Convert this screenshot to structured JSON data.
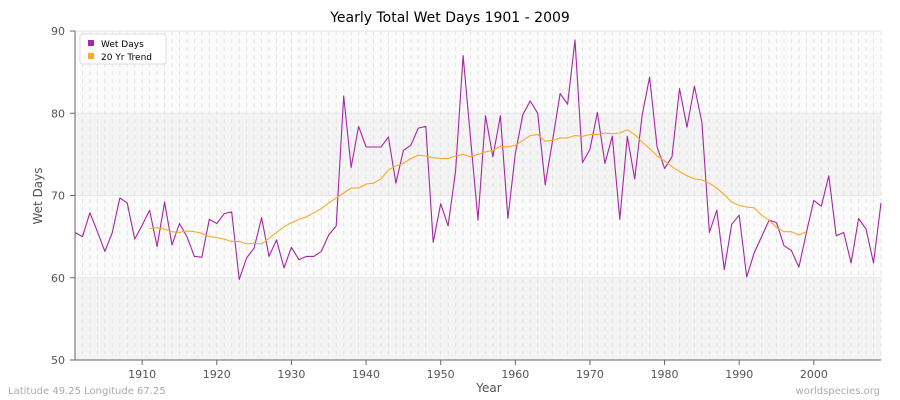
{
  "chart_data": {
    "type": "line",
    "title": "Yearly Total Wet Days 1901 - 2009",
    "xlabel": "Year",
    "ylabel": "Wet Days",
    "xlim": [
      1901,
      2009
    ],
    "ylim": [
      50,
      90
    ],
    "x_ticks": [
      1910,
      1920,
      1930,
      1940,
      1950,
      1960,
      1970,
      1980,
      1990,
      2000
    ],
    "y_ticks": [
      50,
      60,
      70,
      80,
      90
    ],
    "grid": true,
    "legend_position": "top-left",
    "series": [
      {
        "name": "Wet Days",
        "color": "#a626a4",
        "x_start": 1901,
        "values": [
          65.5,
          65.0,
          67.9,
          65.6,
          63.2,
          65.5,
          69.7,
          69.1,
          64.7,
          66.4,
          68.2,
          63.8,
          69.2,
          64.0,
          66.6,
          65.0,
          62.6,
          62.5,
          67.1,
          66.6,
          67.8,
          68.0,
          59.8,
          62.4,
          63.6,
          67.3,
          62.6,
          64.6,
          61.2,
          63.7,
          62.2,
          62.6,
          62.6,
          63.2,
          65.2,
          66.3,
          82.1,
          73.4,
          78.4,
          75.9,
          75.9,
          75.9,
          77.1,
          71.5,
          75.5,
          76.1,
          78.2,
          78.4,
          64.3,
          69.0,
          66.3,
          73.0,
          87.0,
          77.0,
          67.0,
          79.7,
          74.7,
          79.7,
          67.2,
          75.1,
          79.8,
          81.5,
          80.0,
          71.3,
          76.7,
          82.4,
          81.1,
          88.9,
          74.0,
          75.6,
          80.1,
          73.9,
          77.2,
          67.1,
          77.2,
          72.0,
          79.8,
          84.4,
          75.9,
          73.3,
          74.7,
          83.0,
          78.3,
          83.3,
          78.9,
          65.5,
          68.2,
          61.0,
          66.5,
          67.6,
          60.1,
          63.0,
          65.0,
          67.0,
          66.7,
          63.9,
          63.3,
          61.3,
          65.5,
          69.4,
          68.7,
          72.4,
          65.1,
          65.5,
          61.8,
          67.2,
          65.9,
          61.8,
          69.1
        ]
      },
      {
        "name": "20 Yr Trend",
        "color": "#ffa726",
        "x_start": 1911,
        "values": [
          66.0,
          66.1,
          65.9,
          65.6,
          65.5,
          65.7,
          65.6,
          65.4,
          65.0,
          64.9,
          64.7,
          64.4,
          64.4,
          64.1,
          64.2,
          64.1,
          64.8,
          65.5,
          66.2,
          66.7,
          67.1,
          67.4,
          67.9,
          68.4,
          69.1,
          69.7,
          70.3,
          70.9,
          70.9,
          71.4,
          71.5,
          72.0,
          73.1,
          73.6,
          73.9,
          74.5,
          74.9,
          74.8,
          74.6,
          74.5,
          74.5,
          74.8,
          75.0,
          74.7,
          75.0,
          75.3,
          75.5,
          76.0,
          75.9,
          76.1,
          76.7,
          77.3,
          77.4,
          76.6,
          76.7,
          77.0,
          77.0,
          77.3,
          77.2,
          77.4,
          77.4,
          77.6,
          77.5,
          77.6,
          78.0,
          77.4,
          76.5,
          75.7,
          74.8,
          74.2,
          73.5,
          72.9,
          72.4,
          72.0,
          71.9,
          71.5,
          70.9,
          70.1,
          69.2,
          68.8,
          68.6,
          68.5,
          67.6,
          67.0,
          66.1,
          65.6,
          65.6,
          65.2,
          65.6
        ]
      }
    ]
  },
  "footer": {
    "location": "Latitude 49.25 Longitude 67.25",
    "source": "worldspecies.org"
  }
}
